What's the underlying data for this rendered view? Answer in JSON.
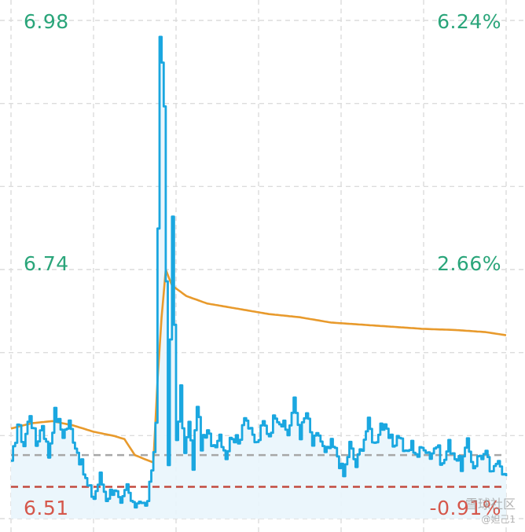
{
  "colors": {
    "up": "#2aa57a",
    "down": "#d5574b",
    "price_line": "#1aa7e0",
    "price_fill": "#e9f5fc",
    "avg_line": "#e89a2c",
    "prev_close": "#a7a7a7",
    "low_ref": "#c24a3f",
    "grid": "#dcdcdc"
  },
  "watermark": {
    "text": "雪球社区",
    "sub": "@妲己1"
  },
  "chart_data": {
    "type": "line",
    "title": "",
    "xlabel": "",
    "ylabel": "",
    "ylim": [
      6.51,
      6.98
    ],
    "y_ticks_left": [
      "6.98",
      "6.74",
      "6.51"
    ],
    "y_ticks_right": [
      "6.24%",
      "2.66%",
      "-0.91%"
    ],
    "prev_close": 6.57,
    "low_reference": 6.54,
    "grid": true,
    "x_points": 241,
    "series": [
      {
        "role": "price",
        "keypoints": [
          [
            0,
            6.56
          ],
          [
            3,
            6.6
          ],
          [
            6,
            6.58
          ],
          [
            9,
            6.61
          ],
          [
            12,
            6.58
          ],
          [
            15,
            6.6
          ],
          [
            18,
            6.57
          ],
          [
            21,
            6.61
          ],
          [
            25,
            6.59
          ],
          [
            28,
            6.6
          ],
          [
            31,
            6.58
          ],
          [
            34,
            6.56
          ],
          [
            37,
            6.54
          ],
          [
            40,
            6.53
          ],
          [
            43,
            6.55
          ],
          [
            46,
            6.53
          ],
          [
            50,
            6.54
          ],
          [
            53,
            6.52
          ],
          [
            56,
            6.54
          ],
          [
            59,
            6.52
          ],
          [
            62,
            6.53
          ],
          [
            65,
            6.52
          ],
          [
            68,
            6.55
          ],
          [
            70,
            6.6
          ],
          [
            72,
            6.97
          ],
          [
            74,
            6.9
          ],
          [
            76,
            6.56
          ],
          [
            78,
            6.8
          ],
          [
            80,
            6.58
          ],
          [
            82,
            6.63
          ],
          [
            84,
            6.57
          ],
          [
            86,
            6.6
          ],
          [
            88,
            6.56
          ],
          [
            90,
            6.62
          ],
          [
            92,
            6.58
          ],
          [
            95,
            6.59
          ],
          [
            98,
            6.58
          ],
          [
            101,
            6.59
          ],
          [
            104,
            6.57
          ],
          [
            107,
            6.59
          ],
          [
            110,
            6.58
          ],
          [
            113,
            6.61
          ],
          [
            116,
            6.59
          ],
          [
            119,
            6.58
          ],
          [
            122,
            6.6
          ],
          [
            125,
            6.59
          ],
          [
            128,
            6.61
          ],
          [
            131,
            6.6
          ],
          [
            134,
            6.59
          ],
          [
            137,
            6.62
          ],
          [
            140,
            6.59
          ],
          [
            143,
            6.61
          ],
          [
            146,
            6.58
          ],
          [
            149,
            6.59
          ],
          [
            152,
            6.57
          ],
          [
            155,
            6.58
          ],
          [
            158,
            6.57
          ],
          [
            161,
            6.55
          ],
          [
            164,
            6.58
          ],
          [
            167,
            6.56
          ],
          [
            170,
            6.58
          ],
          [
            173,
            6.6
          ],
          [
            176,
            6.58
          ],
          [
            179,
            6.6
          ],
          [
            182,
            6.59
          ],
          [
            185,
            6.58
          ],
          [
            188,
            6.59
          ],
          [
            191,
            6.57
          ],
          [
            194,
            6.58
          ],
          [
            197,
            6.57
          ],
          [
            200,
            6.58
          ],
          [
            203,
            6.57
          ],
          [
            206,
            6.58
          ],
          [
            209,
            6.56
          ],
          [
            212,
            6.58
          ],
          [
            215,
            6.57
          ],
          [
            218,
            6.56
          ],
          [
            221,
            6.58
          ],
          [
            224,
            6.56
          ],
          [
            227,
            6.57
          ],
          [
            230,
            6.57
          ],
          [
            233,
            6.55
          ],
          [
            236,
            6.57
          ],
          [
            239,
            6.55
          ],
          [
            240,
            6.55
          ]
        ]
      },
      {
        "role": "average",
        "keypoints": [
          [
            0,
            6.595
          ],
          [
            10,
            6.6
          ],
          [
            20,
            6.602
          ],
          [
            30,
            6.598
          ],
          [
            40,
            6.592
          ],
          [
            50,
            6.588
          ],
          [
            55,
            6.585
          ],
          [
            60,
            6.57
          ],
          [
            65,
            6.566
          ],
          [
            69,
            6.563
          ],
          [
            71,
            6.64
          ],
          [
            73,
            6.7
          ],
          [
            75,
            6.745
          ],
          [
            78,
            6.73
          ],
          [
            85,
            6.72
          ],
          [
            95,
            6.713
          ],
          [
            110,
            6.708
          ],
          [
            125,
            6.703
          ],
          [
            140,
            6.7
          ],
          [
            155,
            6.695
          ],
          [
            170,
            6.693
          ],
          [
            185,
            6.691
          ],
          [
            200,
            6.689
          ],
          [
            215,
            6.688
          ],
          [
            230,
            6.686
          ],
          [
            240,
            6.683
          ]
        ]
      }
    ]
  }
}
